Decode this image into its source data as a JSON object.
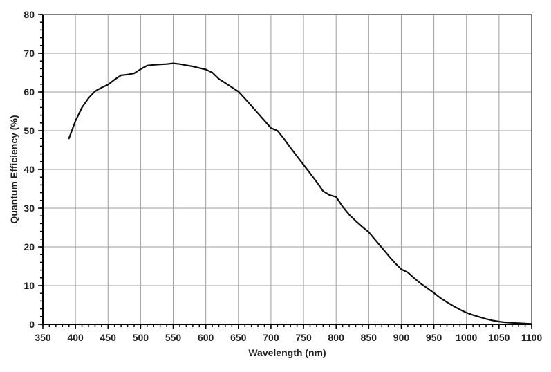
{
  "colors": {
    "background": "#ffffff",
    "curve": "#0d0d0d",
    "grid": "#9e9e9e",
    "axis": "#000000",
    "box_border": "#555555",
    "text": "#1f1f1f"
  },
  "chart_data": {
    "type": "line",
    "title": "",
    "xlabel": "Wavelength (nm)",
    "ylabel": "Quantum Efficiency (%)",
    "xlim": [
      350,
      1100
    ],
    "ylim": [
      0,
      80
    ],
    "x_major_tick_step": 50,
    "x_minor_tick_step": 10,
    "y_major_tick_step": 10,
    "y_minor_tick_step": 2,
    "grid": "on",
    "legend": "none",
    "series": [
      {
        "name": "quantum-efficiency",
        "x": [
          390,
          400,
          410,
          420,
          430,
          440,
          450,
          460,
          470,
          480,
          490,
          500,
          510,
          520,
          530,
          540,
          550,
          560,
          570,
          580,
          590,
          600,
          610,
          620,
          630,
          640,
          650,
          660,
          670,
          680,
          690,
          700,
          710,
          720,
          730,
          740,
          750,
          760,
          770,
          780,
          790,
          800,
          810,
          820,
          830,
          840,
          850,
          860,
          870,
          880,
          890,
          900,
          910,
          920,
          930,
          940,
          950,
          960,
          970,
          980,
          990,
          1000,
          1010,
          1020,
          1030,
          1040,
          1050,
          1060,
          1070,
          1080,
          1090,
          1100
        ],
        "y": [
          48.0,
          52.5,
          56.0,
          58.4,
          60.2,
          61.1,
          61.9,
          63.2,
          64.3,
          64.5,
          64.8,
          65.9,
          66.8,
          67.0,
          67.1,
          67.2,
          67.4,
          67.2,
          66.9,
          66.6,
          66.2,
          65.8,
          65.0,
          63.4,
          62.3,
          61.2,
          60.1,
          58.3,
          56.4,
          54.5,
          52.6,
          50.7,
          50.0,
          47.9,
          45.6,
          43.4,
          41.2,
          39.0,
          36.8,
          34.4,
          33.4,
          32.9,
          30.4,
          28.3,
          26.7,
          25.2,
          23.8,
          21.8,
          19.8,
          17.8,
          15.9,
          14.2,
          13.4,
          11.9,
          10.5,
          9.3,
          8.1,
          6.8,
          5.7,
          4.7,
          3.8,
          3.0,
          2.4,
          1.9,
          1.4,
          1.0,
          0.7,
          0.5,
          0.4,
          0.3,
          0.2,
          0.1
        ]
      }
    ]
  }
}
